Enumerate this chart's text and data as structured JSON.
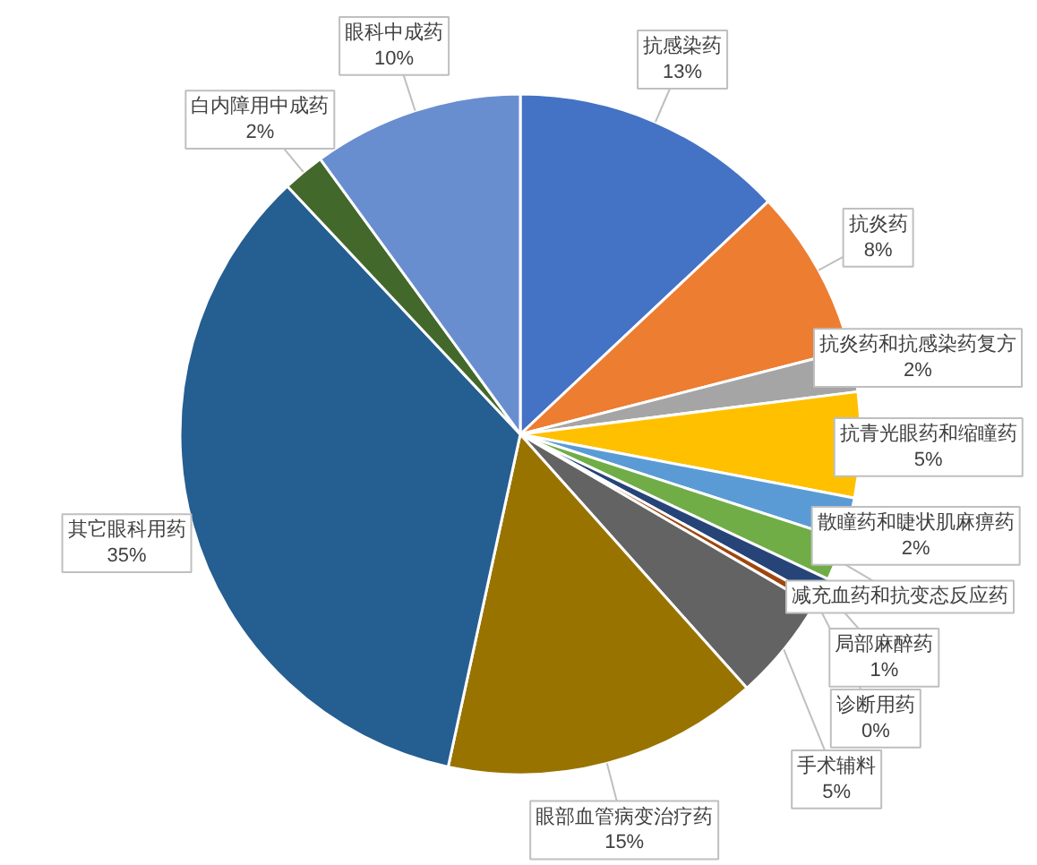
{
  "chart_data": {
    "type": "pie",
    "categories": [
      "抗感染药",
      "抗炎药",
      "抗炎药和抗感染药复方",
      "抗青光眼药和缩瞳药",
      "散瞳药和睫状肌麻痹药",
      "减充血药和抗变态反应药",
      "局部麻醉药",
      "诊断用药",
      "手术辅料",
      "眼部血管病变治疗药",
      "其它眼科用药",
      "白内障用中成药",
      "眼科中成药"
    ],
    "values": [
      13,
      8,
      2,
      5,
      2,
      2,
      1,
      0.4,
      5,
      15,
      34.6,
      2,
      10
    ],
    "value_labels": [
      "13%",
      "8%",
      "2%",
      "5%",
      "2%",
      null,
      "1%",
      "0%",
      "5%",
      "15%",
      "35%",
      "2%",
      "10%"
    ],
    "colors": [
      "#4472c4",
      "#ed7d31",
      "#a5a5a5",
      "#ffc000",
      "#5b9bd5",
      "#70ad47",
      "#264478",
      "#9e480e",
      "#636363",
      "#997300",
      "#255e91",
      "#43682b",
      "#698ed0"
    ]
  }
}
